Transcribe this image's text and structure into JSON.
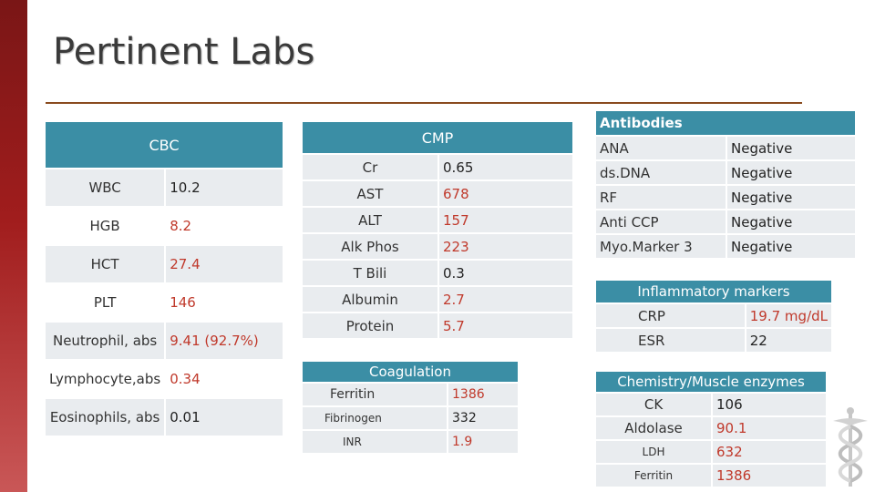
{
  "slide": {
    "title": "Pertinent Labs"
  },
  "cbc": {
    "header": "CBC",
    "rows": [
      {
        "label": "WBC",
        "value": "10.2"
      },
      {
        "label": "HGB",
        "value": "8.2"
      },
      {
        "label": "HCT",
        "value": "27.4"
      },
      {
        "label": "PLT",
        "value": "146"
      },
      {
        "label": "Neutrophil, abs",
        "value": "9.41 (92.7%)"
      },
      {
        "label": "Lymphocyte,abs",
        "value": "0.34"
      },
      {
        "label": "Eosinophils, abs",
        "value": "0.01"
      }
    ]
  },
  "cmp": {
    "header": "CMP",
    "rows": [
      {
        "label": "Cr",
        "value": "0.65"
      },
      {
        "label": "AST",
        "value": "678"
      },
      {
        "label": "ALT",
        "value": "157"
      },
      {
        "label": "Alk Phos",
        "value": "223"
      },
      {
        "label": "T Bili",
        "value": "0.3"
      },
      {
        "label": "Albumin",
        "value": "2.7"
      },
      {
        "label": "Protein",
        "value": "5.7"
      }
    ]
  },
  "coagulation": {
    "header": "Coagulation",
    "rows": [
      {
        "label": "Ferritin",
        "value": "1386"
      },
      {
        "label": "Fibrinogen",
        "value": "332"
      },
      {
        "label": "INR",
        "value": "1.9"
      }
    ]
  },
  "antibodies": {
    "header": "Antibodies",
    "rows": [
      {
        "label": "ANA",
        "value": "Negative"
      },
      {
        "label": "ds.DNA",
        "value": "Negative"
      },
      {
        "label": "RF",
        "value": "Negative"
      },
      {
        "label": "Anti CCP",
        "value": "Negative"
      },
      {
        "label": "Myo.Marker 3",
        "value": "Negative"
      }
    ]
  },
  "inflammatory": {
    "header": "Inflammatory markers",
    "rows": [
      {
        "label": "CRP",
        "value": "19.7 mg/dL"
      },
      {
        "label": "ESR",
        "value": "22"
      }
    ]
  },
  "chemistry": {
    "header": "Chemistry/Muscle enzymes",
    "rows": [
      {
        "label": "CK",
        "value": "106"
      },
      {
        "label": "Aldolase",
        "value": "90.1"
      },
      {
        "label": "LDH",
        "value": "632"
      },
      {
        "label": "Ferritin",
        "value": "1386"
      }
    ]
  },
  "colors": {
    "header": "#3b8ea5",
    "accent_red": "#c0392b",
    "sidebar": "#a11d1d"
  },
  "icons": {
    "logo": "caduceus-icon"
  }
}
